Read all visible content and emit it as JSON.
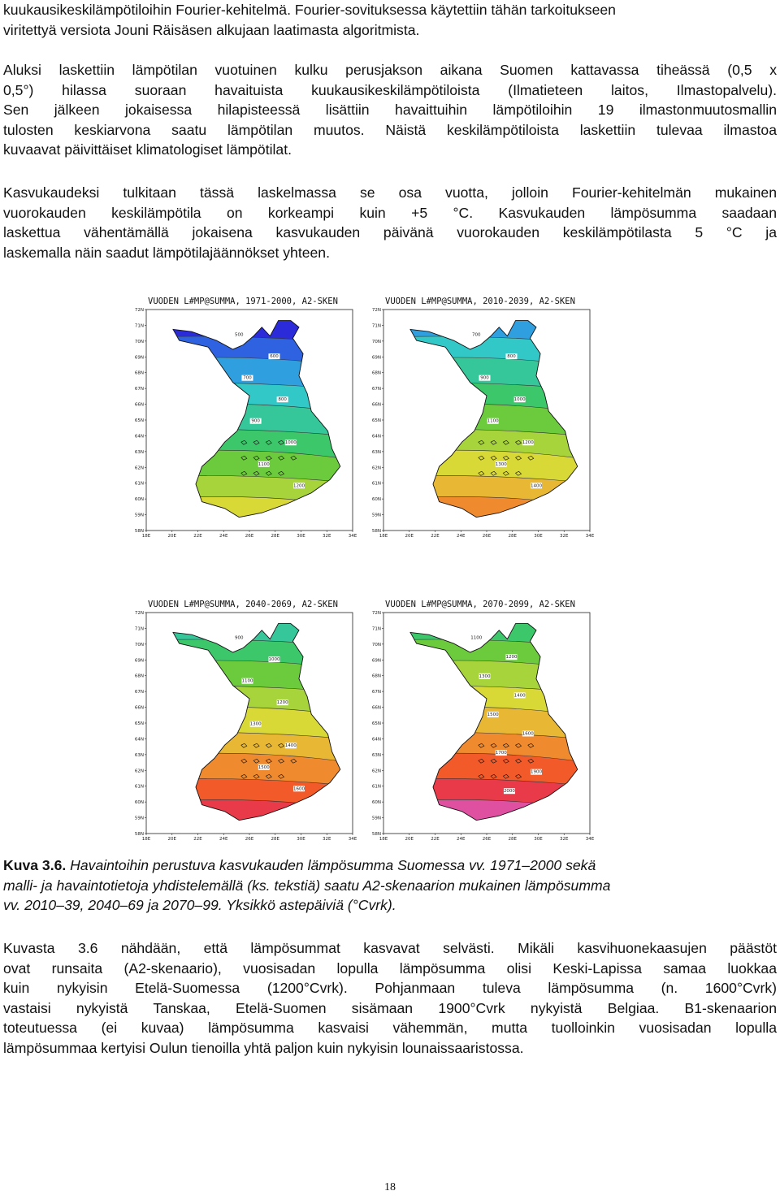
{
  "intro_lines": [
    "kuukausikeskilämpötiloihin Fourier-kehitelmä. Fourier-sovituksessa käytettiin tähän tarkoitukseen",
    "viritettyä versiota Jouni Räisäsen alkujaan laatimasta algoritmista."
  ],
  "para1_lines": [
    "Aluksi laskettiin lämpötilan vuotuinen kulku perusjakson aikana Suomen kattavassa tiheässä (0,5 x",
    "0,5°) hilassa suoraan havaituista kuukausikeskilämpötiloista (Ilmatieteen laitos, Ilmastopalvelu).",
    "Sen jälkeen jokaisessa hilapisteessä lisättiin havaittuihin lämpötiloihin 19 ilmastonmuutosmallin",
    "tulosten keskiarvona saatu lämpötilan muutos. Näistä keskilämpötiloista laskettiin tulevaa ilmastoa",
    "kuvaavat päivittäiset klimatologiset lämpötilat."
  ],
  "para2_lines": [
    "Kasvukaudeksi tulkitaan tässä laskelmassa se osa vuotta, jolloin Fourier-kehitelmän mukainen",
    "vuorokauden keskilämpötila on korkeampi kuin +5 °C. Kasvukauden lämpösumma saadaan",
    "laskettua vähentämällä jokaisena kasvukauden päivänä vuorokauden keskilämpötilasta 5 °C ja",
    "laskemalla näin saadut lämpötilajäännökset yhteen."
  ],
  "maps": [
    {
      "title": "VUODEN L#MP@SUMMA, 1971-2000, A2-SKEN",
      "contours": [
        "500",
        "600",
        "700",
        "800",
        "900",
        "1000",
        "1100",
        "1200"
      ]
    },
    {
      "title": "VUODEN L#MP@SUMMA, 2010-2039, A2-SKEN",
      "contours": [
        "700",
        "800",
        "900",
        "1000",
        "1100",
        "1200",
        "1300",
        "1400"
      ]
    },
    {
      "title": "VUODEN L#MP@SUMMA, 2040-2069, A2-SKEN",
      "contours": [
        "900",
        "1000",
        "1100",
        "1200",
        "1300",
        "1400",
        "1500",
        "1600"
      ]
    },
    {
      "title": "VUODEN L#MP@SUMMA, 2070-2099, A2-SKEN",
      "contours": [
        "1100",
        "1200",
        "1300",
        "1400",
        "1500",
        "1600",
        "1700",
        "1900",
        "2000"
      ]
    }
  ],
  "lat_ticks": [
    "72N",
    "71N",
    "70N",
    "69N",
    "68N",
    "67N",
    "66N",
    "65N",
    "64N",
    "63N",
    "62N",
    "61N",
    "60N",
    "59N",
    "58N"
  ],
  "lon_ticks": [
    "18E",
    "20E",
    "22E",
    "24E",
    "26E",
    "28E",
    "30E",
    "32E",
    "34E"
  ],
  "caption": {
    "label": "Kuva 3.6.",
    "lines": [
      "Havaintoihin perustuva kasvukauden lämpösumma Suomessa vv. 1971–2000 sekä",
      "malli- ja havaintotietoja yhdistelemällä (ks. tekstiä) saatu A2-skenaarion mukainen lämpösumma",
      "vv. 2010–39, 2040–69 ja 2070–99. Yksikkö astepäiviä (°Cvrk)."
    ]
  },
  "para3_lines": [
    "Kuvasta 3.6 nähdään, että lämpösummat kasvavat selvästi. Mikäli kasvihuonekaasujen päästöt",
    "ovat runsaita (A2-skenaario), vuosisadan lopulla lämpösumma olisi Keski-Lapissa samaa luokkaa",
    "kuin nykyisin Etelä-Suomessa (1200°Cvrk). Pohjanmaan tuleva lämpösumma (n. 1600°Cvrk)",
    "vastaisi nykyistä Tanskaa, Etelä-Suomen sisämaan 1900°Cvrk nykyistä Belgiaa. B1-skenaarion",
    "toteutuessa (ei kuvaa) lämpösumma kasvaisi vähemmän, mutta tuolloinkin vuosisadan lopulla",
    "lämpösummaa kertyisi Oulun tienoilla yhtä paljon kuin nykyisin lounaissaaristossa."
  ],
  "page_number": "18",
  "colors": {
    "scale": [
      "#2b2bd9",
      "#2f62e0",
      "#2f9fe0",
      "#32c8c8",
      "#35c79a",
      "#3cc86a",
      "#6ccb3c",
      "#a6d43a",
      "#d8d836",
      "#e8b834",
      "#ef8a2e",
      "#f25a2a",
      "#e83a48",
      "#e050a0"
    ]
  }
}
